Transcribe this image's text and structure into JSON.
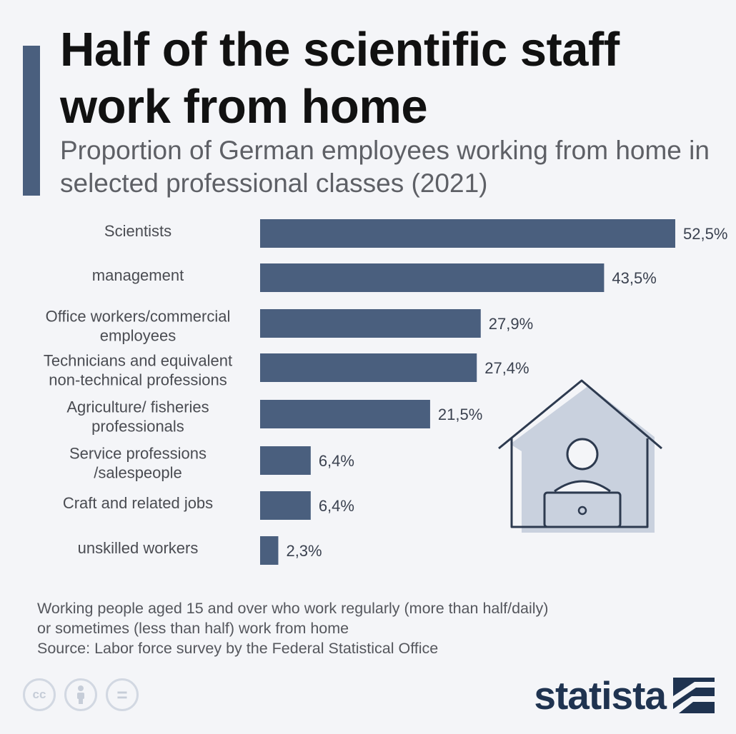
{
  "title": "Half of the scientific staff work from home",
  "subtitle": "Proportion of German employees working from home in selected professional classes (2021)",
  "chart_data": {
    "type": "bar",
    "orientation": "horizontal",
    "categories": [
      [
        "Scientists"
      ],
      [
        "management"
      ],
      [
        "Office workers/commercial",
        "employees"
      ],
      [
        "Technicians and equivalent",
        "non-technical professions"
      ],
      [
        "Agriculture/ fisheries",
        "professionals"
      ],
      [
        "Service professions",
        "/salespeople"
      ],
      [
        "Craft and related jobs"
      ],
      [
        "unskilled workers"
      ]
    ],
    "values": [
      52.5,
      43.5,
      27.9,
      27.4,
      21.5,
      6.4,
      6.4,
      2.3
    ],
    "value_labels": [
      "52,5%",
      "43,5%",
      "27,9%",
      "27,4%",
      "21,5%",
      "6,4%",
      "6,4%",
      "2,3%"
    ],
    "xlim": [
      0,
      60
    ],
    "grid": false,
    "legend": "none",
    "bar_color": "#4a5f7e"
  },
  "footer": {
    "note_line1": "Working people aged 15 and over who work regularly (more than half/daily)",
    "note_line2": "or sometimes (less than half) work from home",
    "source": "Source: Labor force survey by the Federal Statistical Office"
  },
  "license_icons": [
    "cc-icon",
    "attribution-icon",
    "no-derivatives-icon"
  ],
  "cc_labels": [
    "cc",
    "="
  ],
  "brand": "statista",
  "illustration": "house-with-person-at-laptop-icon"
}
